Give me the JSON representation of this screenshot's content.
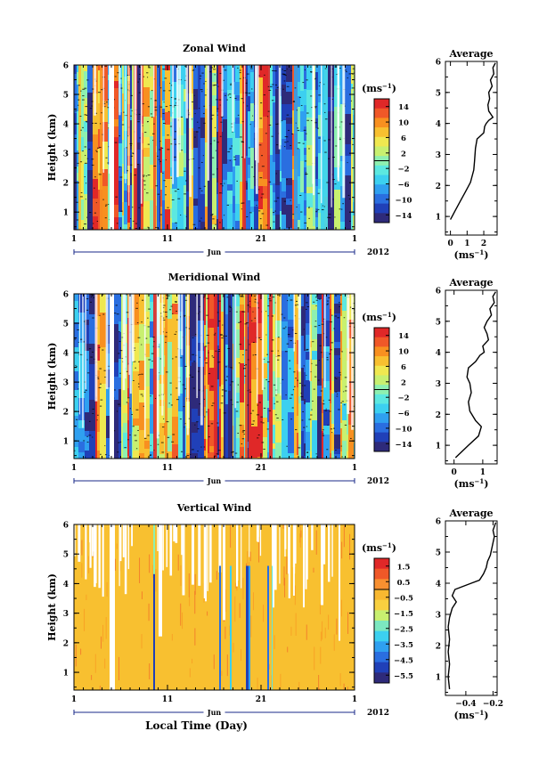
{
  "chart_data": [
    {
      "type": "heatmap",
      "title": "Zonal Wind",
      "ylabel": "Height (km)",
      "xlabel": "",
      "x_ticks": [
        "1",
        "11",
        "21",
        "1"
      ],
      "x_month": "Jun",
      "x_year": "2012",
      "y_ticks": [
        "1",
        "2",
        "3",
        "4",
        "5",
        "6"
      ],
      "ylim": [
        0.4,
        6
      ],
      "colorbar": {
        "unit": "(ms",
        "unit_exp": "−1",
        "unit_close": ")",
        "ticks": [
          "14",
          "10",
          "6",
          "2",
          "−2",
          "−6",
          "−10",
          "−14"
        ],
        "range": [
          -16,
          16
        ]
      },
      "profile": {
        "title": "Average",
        "xlabel": "(ms",
        "xlabel_exp": "−1",
        "xlabel_close": ")",
        "x_ticks": [
          "0",
          "1",
          "2"
        ],
        "xlim": [
          -0.3,
          2.8
        ],
        "y_ticks": [
          "1",
          "2",
          "3",
          "4",
          "5",
          "6"
        ],
        "ylim": [
          0.4,
          6
        ],
        "x": [
          0.0,
          0.3,
          0.6,
          0.9,
          1.2,
          1.4,
          1.45,
          1.5,
          1.6,
          1.8,
          2.0,
          2.05,
          2.15,
          2.3,
          2.55,
          2.3,
          2.25,
          2.35,
          2.3,
          2.5,
          2.4,
          2.6,
          2.55,
          2.7
        ],
        "y": [
          0.9,
          1.2,
          1.5,
          1.8,
          2.1,
          2.5,
          2.8,
          3.2,
          3.5,
          3.6,
          3.7,
          3.9,
          4.0,
          4.1,
          4.2,
          4.4,
          4.6,
          4.8,
          5.0,
          5.2,
          5.4,
          5.6,
          5.8,
          5.95
        ]
      }
    },
    {
      "type": "heatmap",
      "title": "Meridional Wind",
      "ylabel": "Height (km)",
      "xlabel": "",
      "x_ticks": [
        "1",
        "11",
        "21",
        "1"
      ],
      "x_month": "Jun",
      "x_year": "2012",
      "y_ticks": [
        "1",
        "2",
        "3",
        "4",
        "5",
        "6"
      ],
      "ylim": [
        0.4,
        6
      ],
      "colorbar": {
        "unit": "(ms",
        "unit_exp": "−1",
        "unit_close": ")",
        "ticks": [
          "14",
          "10",
          "6",
          "2",
          "−2",
          "−6",
          "−10",
          "−14"
        ],
        "range": [
          -16,
          16
        ]
      },
      "profile": {
        "title": "Average",
        "xlabel": "(ms",
        "xlabel_exp": "−1",
        "xlabel_close": ")",
        "x_ticks": [
          "0",
          "1"
        ],
        "xlim": [
          -0.3,
          1.5
        ],
        "y_ticks": [
          "1",
          "2",
          "3",
          "4",
          "5",
          "6"
        ],
        "ylim": [
          0.4,
          6
        ],
        "x": [
          0.05,
          0.5,
          0.85,
          0.95,
          0.75,
          0.55,
          0.5,
          0.6,
          0.55,
          0.45,
          0.5,
          0.75,
          0.9,
          1.05,
          1.0,
          1.2,
          1.15,
          1.05,
          1.15,
          1.3,
          1.25,
          1.4,
          1.35,
          1.45
        ],
        "y": [
          0.6,
          1.0,
          1.3,
          1.6,
          1.8,
          2.1,
          2.4,
          2.7,
          3.0,
          3.2,
          3.5,
          3.7,
          3.9,
          4.0,
          4.2,
          4.4,
          4.6,
          4.8,
          5.0,
          5.2,
          5.4,
          5.6,
          5.8,
          5.95
        ]
      }
    },
    {
      "type": "heatmap",
      "title": "Vertical Wind",
      "ylabel": "Height (km)",
      "xlabel": "Local Time (Day)",
      "x_ticks": [
        "1",
        "11",
        "21",
        "1"
      ],
      "x_month": "Jun",
      "x_year": "2012",
      "y_ticks": [
        "1",
        "2",
        "3",
        "4",
        "5",
        "6"
      ],
      "ylim": [
        0.4,
        6
      ],
      "colorbar": {
        "unit": "(ms",
        "unit_exp": "−1",
        "unit_close": ")",
        "ticks": [
          "1.5",
          "0.5",
          "−0.5",
          "−1.5",
          "−2.5",
          "−3.5",
          "−4.5",
          "−5.5"
        ],
        "range": [
          -6,
          2
        ]
      },
      "profile": {
        "title": "Average",
        "xlabel": "(ms",
        "xlabel_exp": "−1",
        "xlabel_close": ")",
        "x_ticks": [
          "−0.4",
          "−0.2"
        ],
        "xlim": [
          -0.55,
          -0.17
        ],
        "y_ticks": [
          "1",
          "2",
          "3",
          "4",
          "5",
          "6"
        ],
        "ylim": [
          0.4,
          6
        ],
        "x": [
          -0.52,
          -0.53,
          -0.52,
          -0.53,
          -0.52,
          -0.53,
          -0.52,
          -0.5,
          -0.47,
          -0.5,
          -0.48,
          -0.42,
          -0.36,
          -0.3,
          -0.27,
          -0.25,
          -0.24,
          -0.22,
          -0.21,
          -0.2,
          -0.19,
          -0.2,
          -0.18
        ],
        "y": [
          0.6,
          1.0,
          1.4,
          1.8,
          2.2,
          2.6,
          2.9,
          3.2,
          3.4,
          3.6,
          3.8,
          3.9,
          4.0,
          4.1,
          4.3,
          4.5,
          4.7,
          4.9,
          5.1,
          5.3,
          5.5,
          5.7,
          5.95
        ]
      }
    }
  ]
}
